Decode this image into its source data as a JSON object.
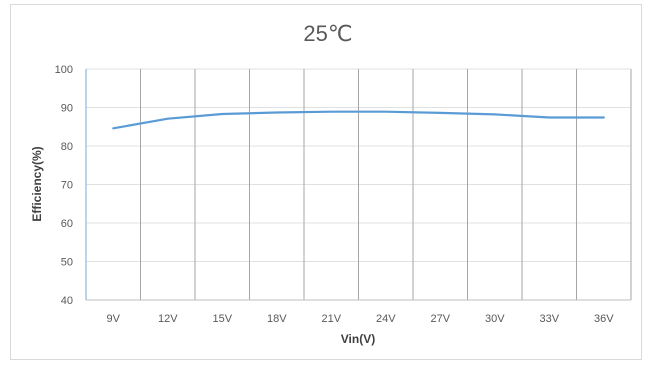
{
  "chart_data": {
    "type": "line",
    "title": "25℃",
    "xlabel": "Vin(V)",
    "ylabel": "Efficiency(%)",
    "categories": [
      "9V",
      "12V",
      "15V",
      "18V",
      "21V",
      "24V",
      "27V",
      "30V",
      "33V",
      "36V"
    ],
    "series": [
      {
        "values": [
          84.6,
          87.1,
          88.3,
          88.7,
          88.9,
          88.9,
          88.6,
          88.2,
          87.4,
          87.4
        ],
        "color": "#5b9bd5"
      }
    ],
    "ylim": [
      40,
      100
    ],
    "yticks": [
      40,
      50,
      60,
      70,
      80,
      90,
      100
    ],
    "grid": {
      "horizontal": true,
      "vertical_lines_between_categories": true,
      "horizontal_color": "#e0e0e0",
      "vertical_color": "#a6a6a6"
    },
    "legend": "none"
  }
}
